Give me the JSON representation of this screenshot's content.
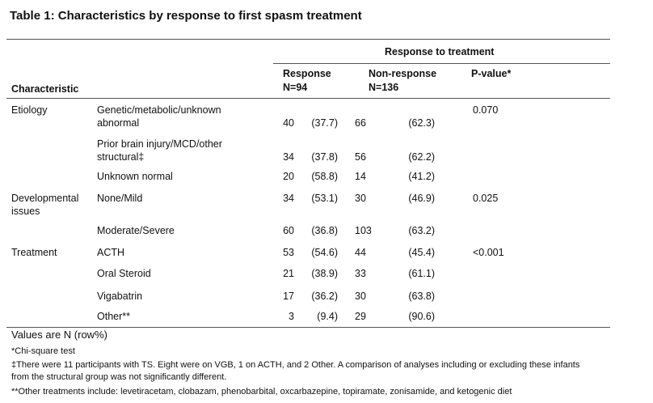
{
  "title": "Table 1: Characteristics  by response to first spasm treatment",
  "header": {
    "group": "Response  to treatment",
    "characteristic": "Characteristic",
    "response": [
      "Response",
      "N=94"
    ],
    "non_response": [
      "Non-response",
      "N=136"
    ],
    "p_value": "P-value*"
  },
  "rows": [
    {
      "group": [
        "Etiology"
      ],
      "label": [
        "Genetic/metabolic/unknown",
        "abnormal"
      ],
      "r_n": "40",
      "r_pct": "(37.7)",
      "nr_n": "66",
      "nr_pct": "(62.3)",
      "p": "0.070"
    },
    {
      "label": [
        "Prior brain injury/MCD/other",
        "structural‡"
      ],
      "r_n": "34",
      "r_pct": "(37.8)",
      "nr_n": "56",
      "nr_pct": "(62.2)"
    },
    {
      "label": [
        "Unknown normal"
      ],
      "r_n": "20",
      "r_pct": "(58.8)",
      "nr_n": "14",
      "nr_pct": "(41.2)"
    },
    {
      "group": [
        "Developmental",
        "issues"
      ],
      "label": [
        "None/Mild"
      ],
      "r_n": "34",
      "r_pct": "(53.1)",
      "nr_n": "30",
      "nr_pct": "(46.9)",
      "p": "0.025"
    },
    {
      "label": [
        "Moderate/Severe"
      ],
      "r_n": "60",
      "r_pct": "(36.8)",
      "nr_n": "103",
      "nr_pct": "(63.2)"
    },
    {
      "group": [
        "Treatment"
      ],
      "label": [
        "ACTH"
      ],
      "r_n": "53",
      "r_pct": "(54.6)",
      "nr_n": "44",
      "nr_pct": "(45.4)",
      "p": "<0.001"
    },
    {
      "label": [
        "Oral Steroid"
      ],
      "r_n": "21",
      "r_pct": "(38.9)",
      "nr_n": "33",
      "nr_pct": "(61.1)"
    },
    {
      "label": [
        "Vigabatrin"
      ],
      "r_n": "17",
      "r_pct": "(36.2)",
      "nr_n": "30",
      "nr_pct": "(63.8)"
    },
    {
      "label": [
        "Other**"
      ],
      "r_n": "3",
      "r_pct": "(9.4)",
      "nr_n": "29",
      "nr_pct": "(90.6)"
    }
  ],
  "footnotes": [
    [
      "Values are N (row%)"
    ],
    [
      "*Chi-square test"
    ],
    [
      "‡There were 11 participants with TS. Eight were on VGB, 1 on ACTH, and 2 Other.  A comparison of analyses including or excluding these infants",
      "from the structural group was not significantly different."
    ],
    [
      "**Other treatments include:  levetiracetam, clobazam,  phenobarbital,  oxcarbazepine, topiramate, zonisamide,  and ketogenic diet"
    ]
  ]
}
